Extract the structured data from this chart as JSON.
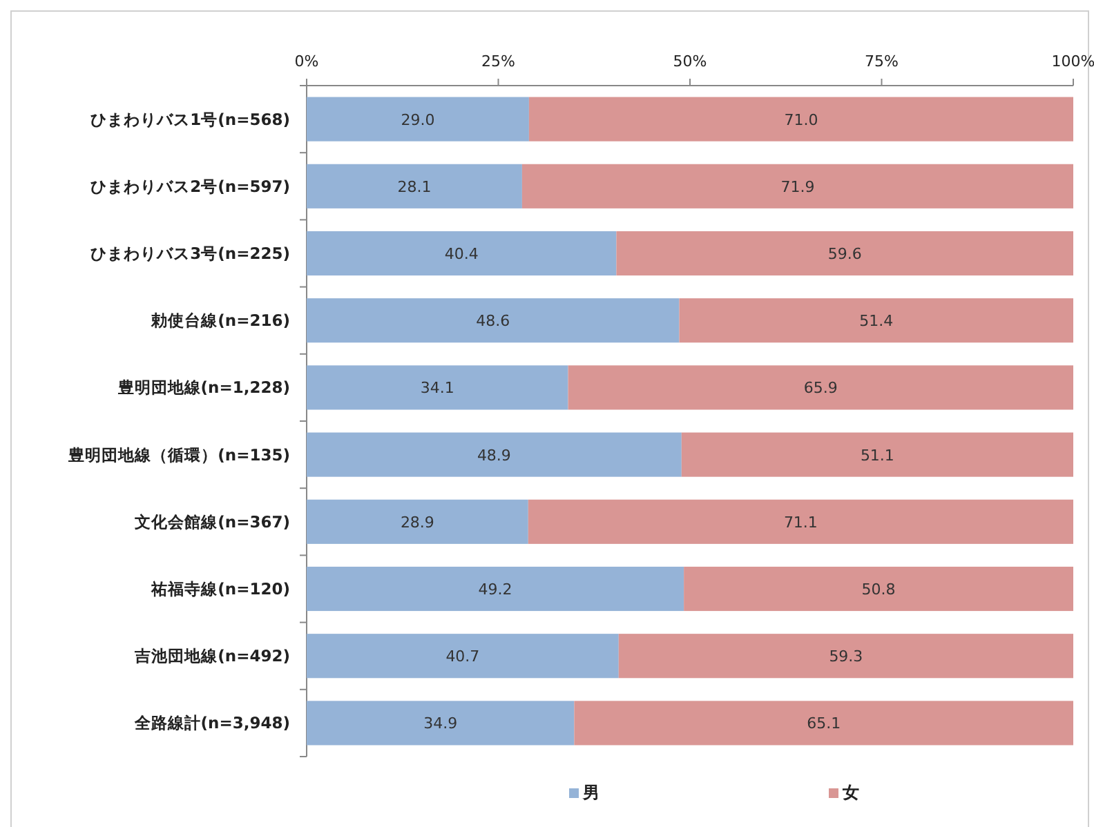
{
  "chart_data": {
    "type": "bar",
    "orientation": "horizontal",
    "stacked": true,
    "legend": "bottom",
    "grid": false,
    "categories": [
      "ひまわりバス1号(n=568)",
      "ひまわりバス2号(n=597)",
      "ひまわりバス3号(n=225)",
      "勅使台線(n=216)",
      "豊明団地線(n=1,228)",
      "豊明団地線（循環）(n=135)",
      "文化会館線(n=367)",
      "祐福寺線(n=120)",
      "吉池団地線(n=492)",
      "全路線計(n=3,948)"
    ],
    "series": [
      {
        "name": "男",
        "color": "#95b3d7",
        "values": [
          29.0,
          28.1,
          40.4,
          48.6,
          34.1,
          48.9,
          28.9,
          49.2,
          40.7,
          34.9
        ],
        "value_labels": [
          "29.0",
          "28.1",
          "40.4",
          "48.6",
          "34.1",
          "48.9",
          "28.9",
          "49.2",
          "40.7",
          "34.9"
        ]
      },
      {
        "name": "女",
        "color": "#d99694",
        "values": [
          71.0,
          71.9,
          59.6,
          51.4,
          65.9,
          51.1,
          71.1,
          50.8,
          59.3,
          65.1
        ],
        "value_labels": [
          "71.0",
          "71.9",
          "59.6",
          "51.4",
          "65.9",
          "51.1",
          "71.1",
          "50.8",
          "59.3",
          "65.1"
        ]
      }
    ],
    "xlim": [
      0,
      100
    ],
    "xticks": [
      {
        "value": 0,
        "label": "0%"
      },
      {
        "value": 25,
        "label": "25%"
      },
      {
        "value": 50,
        "label": "50%"
      },
      {
        "value": 75,
        "label": "75%"
      },
      {
        "value": 100,
        "label": "100%"
      }
    ]
  }
}
